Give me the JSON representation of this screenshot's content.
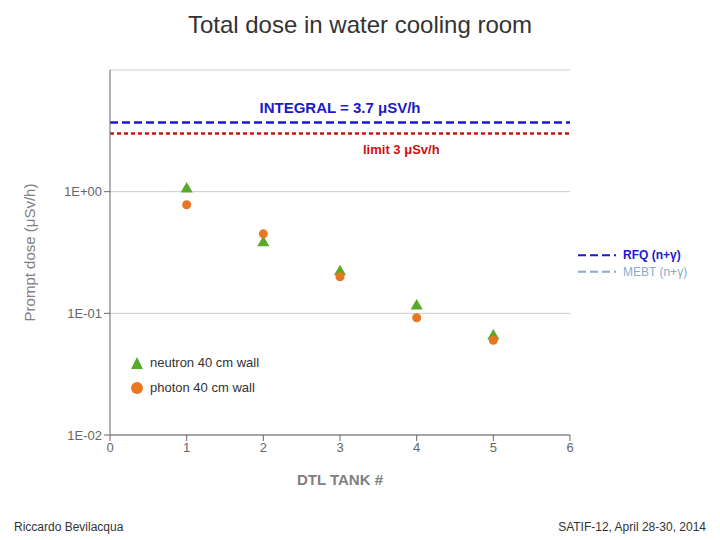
{
  "chart_data": {
    "type": "scatter",
    "title": "Total dose in water cooling room",
    "x_label": "DTL TANK #",
    "y_label": "Prompt dose (μSv/h)",
    "x": [
      1,
      2,
      3,
      4,
      5
    ],
    "series": [
      {
        "name": "neutron 40 cm wall",
        "color": "#5aaa2a",
        "marker": "triangle",
        "values": [
          1.05,
          0.38,
          0.22,
          0.115,
          0.065
        ]
      },
      {
        "name": "photon 40 cm wall",
        "color": "#e87722",
        "marker": "circle",
        "values": [
          0.78,
          0.45,
          0.2,
          0.092,
          0.06
        ]
      }
    ],
    "xlim": [
      0,
      6
    ],
    "xticks": [
      0,
      1,
      2,
      3,
      4,
      5,
      6
    ],
    "ylim": [
      0.01,
      10.0
    ],
    "yticks": [
      {
        "value": 0.01,
        "label": "1E-02"
      },
      {
        "value": 0.1,
        "label": "1E-01"
      },
      {
        "value": 1.0,
        "label": "1E+00"
      }
    ],
    "log": "y",
    "grid": true,
    "legend": "lower left",
    "reference_lines": [
      {
        "value": 3.7,
        "label": "INTEGRAL = 3.7 μSV/h",
        "color": "#1a1acc",
        "line_style": "dashed"
      },
      {
        "value": 3.0,
        "label": "limit 3 μSv/h",
        "color": "#cc1111",
        "line_style": "dashed"
      }
    ],
    "side_labels": [
      {
        "value": 0.3,
        "label": "RFQ (n+γ)",
        "color": "#1a1acc",
        "line_style": "dashed"
      },
      {
        "value": 0.22,
        "label": "MEBT (n+γ)",
        "color": "#88aacc",
        "line_style": "dashed"
      }
    ],
    "footer": [
      "Riccardo Bevilacqua",
      "SATIF-12, April 28-30, 2014"
    ]
  }
}
